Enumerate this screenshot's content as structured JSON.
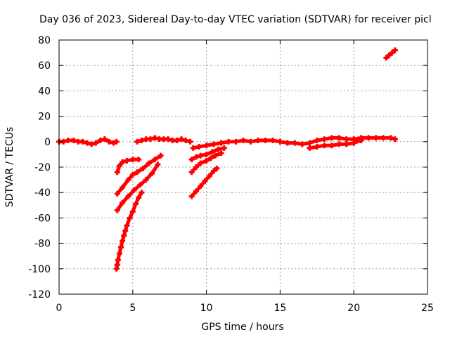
{
  "chart_data": {
    "type": "scatter",
    "title": "Day 036 of 2023, Sidereal Day-to-day VTEC variation (SDTVAR) for receiver picl",
    "xlabel": "GPS time / hours",
    "ylabel": "SDTVAR / TECUs",
    "xlim": [
      0,
      25
    ],
    "ylim": [
      -120,
      80
    ],
    "xticks": [
      0,
      5,
      10,
      15,
      20,
      25
    ],
    "yticks": [
      -120,
      -100,
      -80,
      -60,
      -40,
      -20,
      0,
      20,
      40,
      60,
      80
    ],
    "grid": true,
    "legend": "none",
    "marker_color": "#ff0000",
    "series": [
      {
        "segments": [
          {
            "x": [
              0.0,
              0.3,
              0.6,
              1.0,
              1.3,
              1.6,
              1.9,
              2.2,
              2.5,
              2.8,
              3.1,
              3.4,
              3.7,
              3.9
            ],
            "y": [
              0,
              0,
              1,
              1,
              0,
              0,
              -1,
              -2,
              -1,
              1,
              2,
              0,
              -1,
              0
            ]
          },
          {
            "x": [
              5.3,
              5.6,
              5.9,
              6.2,
              6.5,
              6.8,
              7.1,
              7.4,
              7.7,
              8.0,
              8.3,
              8.6,
              8.9
            ],
            "y": [
              0,
              1,
              2,
              2,
              3,
              2,
              2,
              2,
              1,
              1,
              2,
              1,
              0
            ]
          },
          {
            "x": [
              9.1,
              9.5,
              10.0,
              10.5,
              11.0,
              11.5,
              12.0,
              12.5,
              13.0,
              13.5,
              14.0,
              14.5,
              15.0
            ],
            "y": [
              -5,
              -4,
              -3,
              -2,
              -1,
              0,
              0,
              1,
              0,
              1,
              1,
              1,
              0
            ]
          },
          {
            "x": [
              15.0,
              15.5,
              16.0,
              16.5,
              17.0,
              17.5,
              18.0,
              18.5,
              19.0,
              19.5,
              20.0,
              20.5,
              21.0,
              21.5,
              22.0,
              22.5,
              22.8
            ],
            "y": [
              0,
              -1,
              -1,
              -2,
              -1,
              1,
              2,
              3,
              3,
              2,
              2,
              3,
              3,
              3,
              3,
              3,
              2
            ]
          },
          {
            "x": [
              17.0,
              17.5,
              18.0,
              18.5,
              19.0,
              19.5,
              20.0,
              20.5
            ],
            "y": [
              -5,
              -4,
              -3,
              -3,
              -2,
              -2,
              -1,
              1
            ]
          },
          {
            "x": [
              3.95,
              4.1,
              4.3,
              4.6,
              5.0,
              5.4
            ],
            "y": [
              -24,
              -19,
              -16,
              -15,
              -14,
              -14
            ]
          },
          {
            "x": [
              3.95,
              4.3,
              4.7,
              5.0,
              5.3,
              5.7,
              6.1,
              6.5,
              6.9
            ],
            "y": [
              -41,
              -36,
              -30,
              -26,
              -24,
              -21,
              -17,
              -14,
              -11
            ]
          },
          {
            "x": [
              3.95,
              4.3,
              4.7,
              5.1,
              5.5,
              5.9,
              6.3,
              6.7
            ],
            "y": [
              -54,
              -48,
              -43,
              -38,
              -34,
              -30,
              -25,
              -18
            ]
          },
          {
            "x": [
              3.9,
              3.95,
              4.0,
              4.1,
              4.2,
              4.3,
              4.4,
              4.5,
              4.6,
              4.8,
              5.0,
              5.2,
              5.4,
              5.6
            ],
            "y": [
              -100,
              -97,
              -93,
              -88,
              -83,
              -78,
              -74,
              -70,
              -66,
              -60,
              -55,
              -49,
              -44,
              -40
            ]
          },
          {
            "x": [
              9.0,
              9.3,
              9.6,
              10.0,
              10.4,
              10.8,
              11.2
            ],
            "y": [
              -14,
              -12,
              -11,
              -10,
              -8,
              -6,
              -5
            ]
          },
          {
            "x": [
              9.0,
              9.3,
              9.6,
              10.0,
              10.3,
              10.6,
              11.0
            ],
            "y": [
              -24,
              -20,
              -17,
              -15,
              -13,
              -11,
              -9
            ]
          },
          {
            "x": [
              9.0,
              9.3,
              9.6,
              9.9,
              10.2,
              10.5,
              10.7
            ],
            "y": [
              -43,
              -39,
              -35,
              -31,
              -27,
              -23,
              -21
            ]
          },
          {
            "x": [
              22.2,
              22.4,
              22.6,
              22.8
            ],
            "y": [
              66,
              68,
              70,
              72
            ]
          }
        ]
      }
    ]
  }
}
